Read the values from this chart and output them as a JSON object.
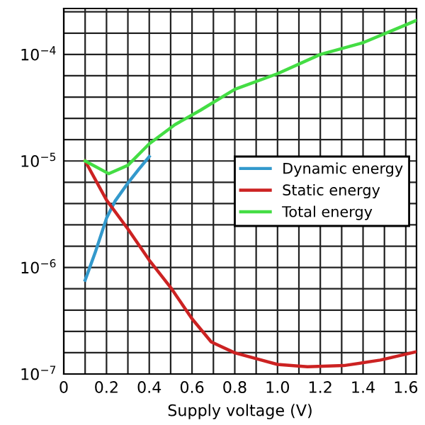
{
  "chart_data": {
    "type": "line",
    "xlabel": "Supply voltage (V)",
    "log": "y",
    "grid": true,
    "legend": "center right",
    "xlim": [
      0,
      1.65
    ],
    "ylim": [
      1e-07,
      0.00027
    ],
    "xticks": [
      0,
      {
        "value": 0.1,
        "label": null
      },
      0.2,
      {
        "value": 0.3,
        "label": null
      },
      0.4,
      {
        "value": 0.5,
        "label": null
      },
      0.6,
      {
        "value": 0.7,
        "label": null
      },
      0.8,
      {
        "value": 0.9,
        "label": null
      },
      {
        "value": 1.0,
        "label": "1.0"
      },
      {
        "value": 1.1,
        "label": null
      },
      1.2,
      {
        "value": 1.3,
        "label": null
      },
      1.4,
      {
        "value": 1.5,
        "label": null
      },
      1.6
    ],
    "yticks": [
      {
        "value": 1e-07,
        "label": "10$^{−7}$"
      },
      {
        "value": 1.585e-07,
        "label": null
      },
      {
        "value": 2.512e-07,
        "label": null
      },
      {
        "value": 3.981e-07,
        "label": null
      },
      {
        "value": 6.31e-07,
        "label": null
      },
      {
        "value": 1e-06,
        "label": "10$^{−6}$"
      },
      {
        "value": 1.585e-06,
        "label": null
      },
      {
        "value": 2.512e-06,
        "label": null
      },
      {
        "value": 3.981e-06,
        "label": null
      },
      {
        "value": 6.31e-06,
        "label": null
      },
      {
        "value": 1e-05,
        "label": "10$^{−5}$"
      },
      {
        "value": 1.585e-05,
        "label": null
      },
      {
        "value": 2.512e-05,
        "label": null
      },
      {
        "value": 3.981e-05,
        "label": null
      },
      {
        "value": 6.31e-05,
        "label": null
      },
      {
        "value": 0.0001,
        "label": "10$^{−4}$"
      },
      {
        "value": 0.0001585,
        "label": null
      },
      {
        "value": 0.0002512,
        "label": null
      }
    ],
    "series": [
      {
        "name": "Dynamic energy",
        "color": "#3399cc",
        "x": [
          0.1,
          0.147,
          0.2,
          0.24,
          0.3,
          0.35,
          0.4
        ],
        "values": [
          7.6e-07,
          1.38e-06,
          2.9e-06,
          4.2e-06,
          6.2e-06,
          8.3e-06,
          1.1e-05
        ]
      },
      {
        "name": "Static energy",
        "color": "#cc2222",
        "x": [
          0.1,
          0.2,
          0.3,
          0.4,
          0.5,
          0.6,
          0.69,
          0.8,
          1.0,
          1.14,
          1.31,
          1.48,
          1.65
        ],
        "values": [
          1e-05,
          4.3e-06,
          2.3e-06,
          1.17e-06,
          6.5e-07,
          3.3e-07,
          2e-07,
          1.58e-07,
          1.23e-07,
          1.17e-07,
          1.2e-07,
          1.35e-07,
          1.62e-07
        ]
      },
      {
        "name": "Total energy",
        "color": "#44dd44",
        "x": [
          0.1,
          0.21,
          0.3,
          0.4,
          0.52,
          0.64,
          0.8,
          1.0,
          1.2,
          1.4,
          1.59,
          1.65
        ],
        "values": [
          1e-05,
          7.6e-06,
          9.1e-06,
          1.45e-05,
          2.19e-05,
          3e-05,
          4.7e-05,
          6.6e-05,
          0.0001,
          0.000129,
          0.000186,
          0.000209
        ]
      }
    ]
  }
}
